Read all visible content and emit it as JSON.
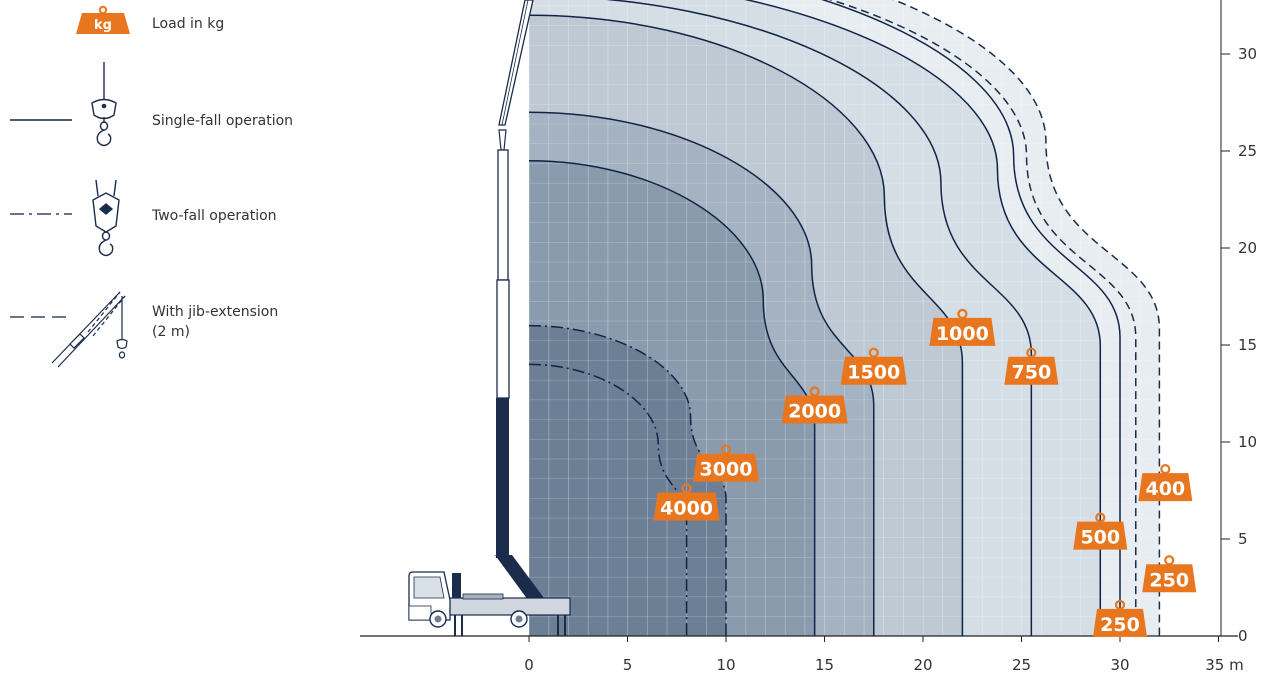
{
  "legend": {
    "kg_badge": "kg",
    "load_label": "Load in kg",
    "single_fall": "Single-fall operation",
    "two_fall": "Two-fall operation",
    "jib_line1": "With jib-extension",
    "jib_line2": "(2 m)"
  },
  "colors": {
    "accent": "#e8761e",
    "curve": "#0f2446",
    "jib_curve": "#1b2c4a",
    "zone_darkest": "#6c7f95",
    "zone_dark": "#8a9bad",
    "zone_mid": "#a4b2c1",
    "zone_light": "#bfc9d4",
    "zone_lighter": "#d5dde5",
    "zone_lightest": "#e8edf2",
    "truck": "#1a2b4c"
  },
  "chart_data": {
    "type": "load-chart",
    "x_axis": {
      "ticks": [
        "0",
        "5",
        "10",
        "15",
        "20",
        "25",
        "30",
        "35 m"
      ],
      "range": [
        0,
        35
      ],
      "unit": "m"
    },
    "y_axis": {
      "ticks": [
        "0",
        "5",
        "10",
        "15",
        "20",
        "25",
        "30"
      ],
      "range": [
        0,
        32
      ],
      "unit": "m",
      "position": "right"
    },
    "grid": true,
    "curves": [
      {
        "load": "4000",
        "operation": "two-fall",
        "max_reach": 8,
        "max_height": 14
      },
      {
        "load": "3000",
        "operation": "two-fall",
        "max_reach": 10,
        "max_height": 16
      },
      {
        "load": "2000",
        "operation": "single-fall",
        "max_reach": 14.5,
        "max_height": 24.5
      },
      {
        "load": "1500",
        "operation": "single-fall",
        "max_reach": 17.5,
        "max_height": 27
      },
      {
        "load": "1000",
        "operation": "single-fall",
        "max_reach": 22,
        "max_height": 32
      },
      {
        "load": "750",
        "operation": "single-fall",
        "max_reach": 25.5,
        "max_height": 33
      },
      {
        "load": "500",
        "operation": "single-fall",
        "max_reach": 29,
        "max_height": 34
      },
      {
        "load": "400",
        "operation": "jib-extension",
        "max_reach": 30.8,
        "max_height": 35
      },
      {
        "load": "250",
        "operation": "single-fall",
        "max_reach": 30,
        "max_height": 35
      },
      {
        "load": "250",
        "operation": "jib-extension",
        "max_reach": 32,
        "max_height": 36
      }
    ]
  }
}
